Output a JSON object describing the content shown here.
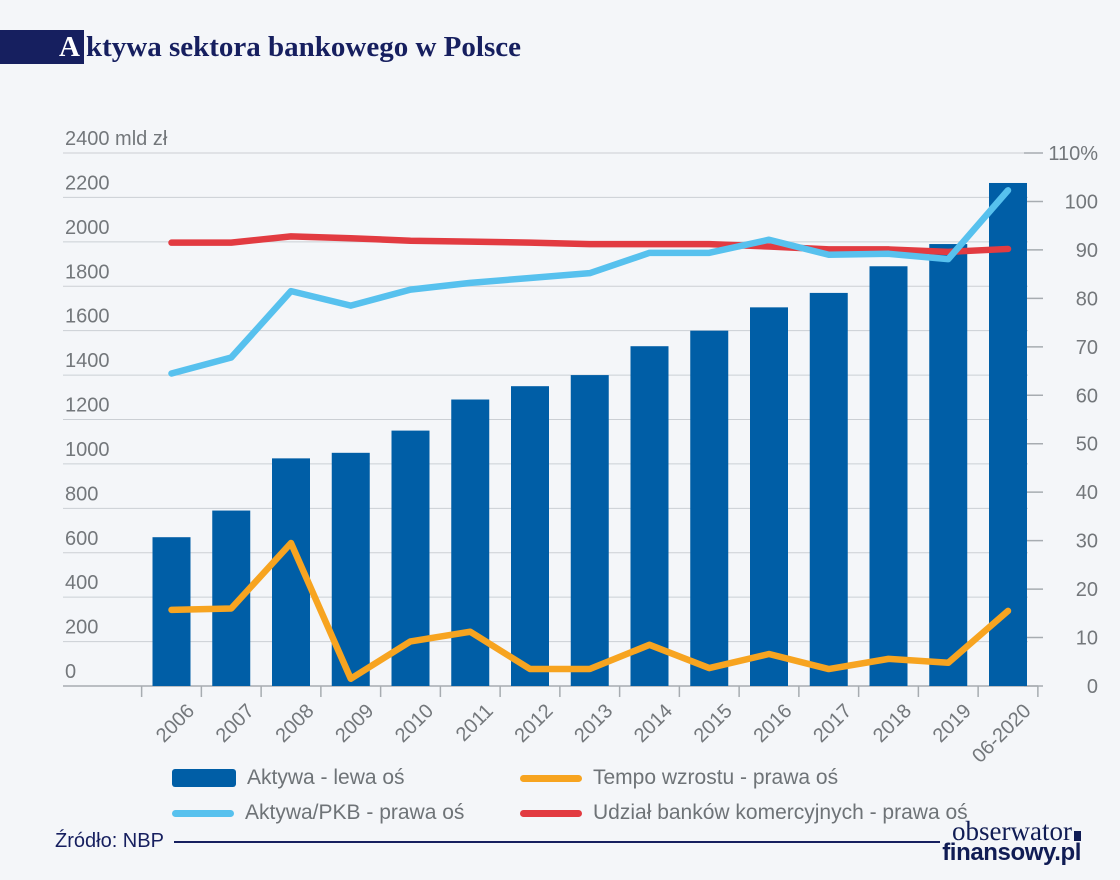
{
  "title": {
    "highlight": "A",
    "rest": "ktywa sektora bankowego w Polsce"
  },
  "source": "Źródło: NBP",
  "logo": {
    "line1": "obserwator",
    "line2": "finansowy.pl"
  },
  "palette": {
    "navy": "#161F5F",
    "background": "#F4F6F9",
    "grid": "#CBCFD4",
    "axis": "#A7ACB1",
    "tick_text": "#73777B",
    "xlabel_text": "#6A6E72",
    "legend_text": "#6E7377"
  },
  "chart_data": {
    "type": "bar",
    "subtype": "combo bar+line, dual axis",
    "categories": [
      "2006",
      "2007",
      "2008",
      "2009",
      "2010",
      "2011",
      "2012",
      "2013",
      "2014",
      "2015",
      "2016",
      "2017",
      "2018",
      "2019",
      "06-2020"
    ],
    "series": [
      {
        "name": "Aktywa - lewa oś",
        "type": "bar",
        "axis": "left",
        "unit": "mld zł",
        "color": "#005EA6",
        "values": [
          670,
          790,
          1025,
          1050,
          1150,
          1290,
          1350,
          1400,
          1530,
          1600,
          1705,
          1770,
          1890,
          1990,
          2265
        ]
      },
      {
        "name": "Tempo wzrostu - prawa oś",
        "type": "line",
        "axis": "right",
        "unit": "%",
        "color": "#F7A420",
        "values": [
          15.7,
          16,
          29.5,
          1.5,
          9.2,
          11.2,
          3.5,
          3.5,
          8.5,
          3.7,
          6.6,
          3.5,
          5.6,
          4.8,
          15.5
        ]
      },
      {
        "name": "Aktywa/PKB - prawa oś",
        "type": "line",
        "axis": "right",
        "unit": "%",
        "color": "#57C1EE",
        "values": [
          64.5,
          67.8,
          81.5,
          78.5,
          81.8,
          83.2,
          84.2,
          85.2,
          89.4,
          89.4,
          92.1,
          89.0,
          89.2,
          88.1,
          102.3
        ]
      },
      {
        "name": "Udział banków komercyjnych - prawa oś",
        "type": "line",
        "axis": "right",
        "unit": "%",
        "color": "#E23B41",
        "values": [
          91.5,
          91.5,
          92.8,
          92.4,
          91.9,
          91.7,
          91.5,
          91.2,
          91.2,
          91.2,
          90.7,
          90.1,
          90.1,
          89.6,
          90.2
        ]
      }
    ],
    "left_axis": {
      "max": 2400,
      "values": [
        0,
        200,
        400,
        600,
        800,
        1000,
        1200,
        1400,
        1600,
        1800,
        2000,
        2200,
        2400
      ],
      "labels": [
        "0",
        "200",
        "400",
        "600",
        "800",
        "1000",
        "1200",
        "1400",
        "1600",
        "1800",
        "2000",
        "2200",
        "2400 mld zł"
      ]
    },
    "right_axis": {
      "max": 110,
      "values": [
        0,
        10,
        20,
        30,
        40,
        50,
        60,
        70,
        80,
        90,
        100,
        110
      ],
      "labels": [
        "0",
        "10",
        "20",
        "30",
        "40",
        "50",
        "60",
        "70",
        "80",
        "90",
        "100",
        "110%"
      ]
    },
    "grid": true,
    "legend_position": "bottom"
  }
}
